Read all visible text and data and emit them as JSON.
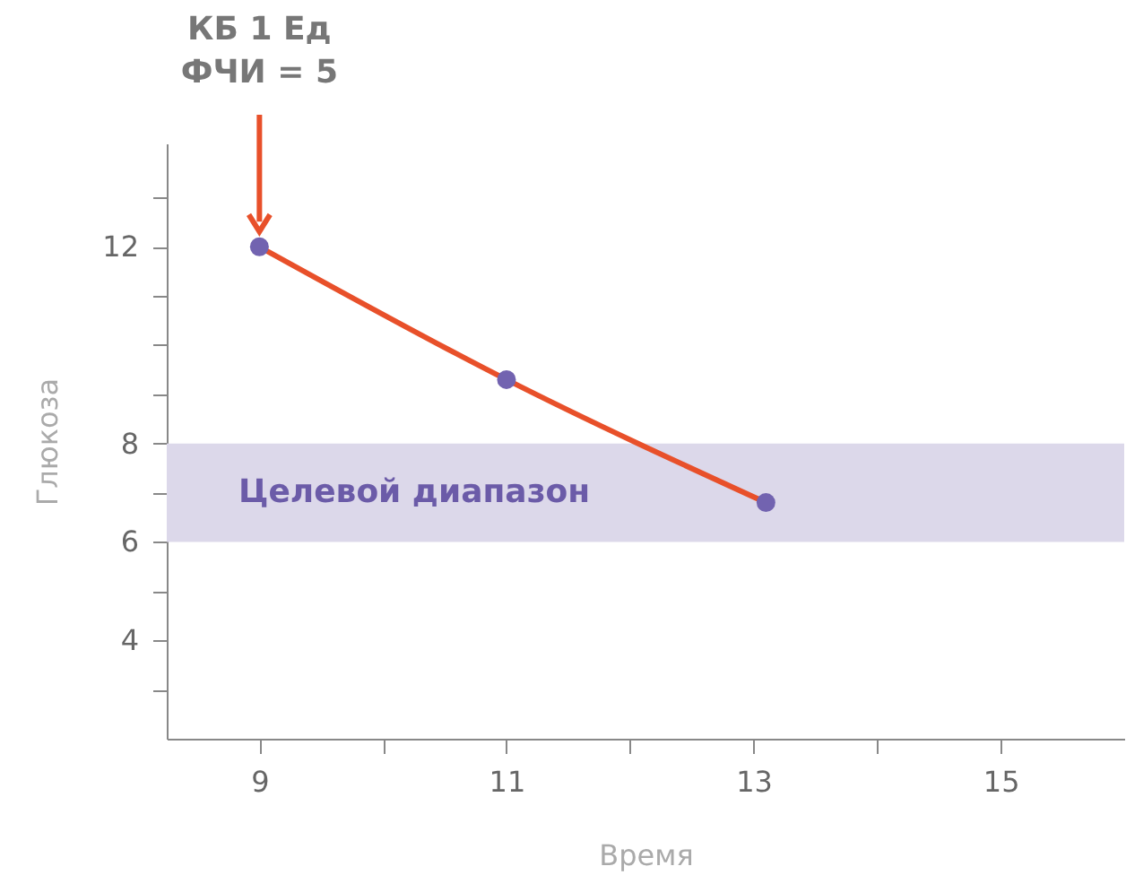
{
  "chart_data": {
    "type": "line",
    "xlabel": "Время",
    "ylabel": "Глюкоза",
    "x": [
      9,
      11,
      13.1
    ],
    "series": [
      {
        "color": "#e8502a",
        "values": [
          12,
          9.3,
          6.8
        ]
      }
    ],
    "marker": "circle",
    "line_style": "solid",
    "xlim": [
      8.25,
      16
    ],
    "ylim": [
      2,
      14.1
    ],
    "xticks": [
      9,
      {
        "value": 10,
        "label": null
      },
      11,
      {
        "value": 12,
        "label": null
      },
      13,
      {
        "value": 14,
        "label": null
      },
      15
    ],
    "yticks": [
      {
        "value": 3,
        "label": null
      },
      4,
      {
        "value": 5,
        "label": null
      },
      6,
      {
        "value": 7,
        "label": null
      },
      8,
      {
        "value": 9,
        "label": null
      },
      {
        "value": 10,
        "label": null
      },
      {
        "value": 11,
        "label": null
      },
      12,
      {
        "value": 13,
        "label": null
      }
    ],
    "bands": [
      {
        "axis": "y",
        "from": 6,
        "to": 8,
        "label": "Целевой диапазон",
        "color": "#dcd8ea"
      }
    ],
    "annotations": [
      "КБ 1 Ед\nФЧИ = 5"
    ],
    "grid": false
  }
}
